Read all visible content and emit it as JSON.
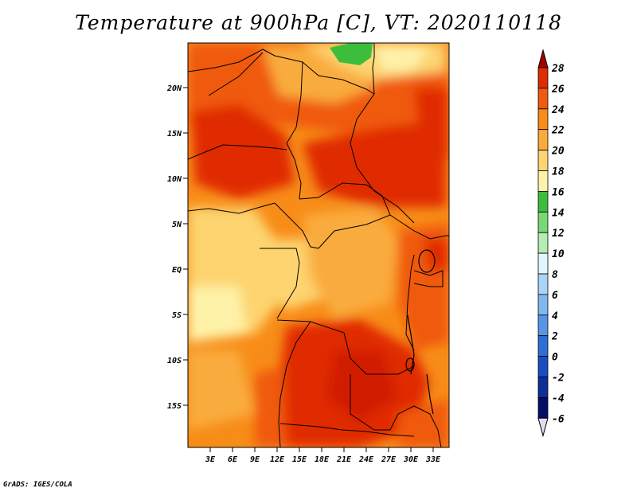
{
  "title": "Temperature at 900hPa [C], VT: 2020110118",
  "credit": "GrADS: IGES/COLA",
  "map": {
    "lat_labels": [
      "20N",
      "15N",
      "10N",
      "5N",
      "EQ",
      "5S",
      "10S",
      "15S"
    ],
    "lon_labels": [
      "3E",
      "6E",
      "9E",
      "12E",
      "15E",
      "18E",
      "21E",
      "24E",
      "27E",
      "30E",
      "33E"
    ]
  },
  "colorbar": {
    "labels": [
      "28",
      "26",
      "24",
      "22",
      "20",
      "18",
      "16",
      "14",
      "12",
      "10",
      "8",
      "6",
      "4",
      "2",
      "0",
      "-2",
      "-4",
      "-6"
    ],
    "colors": [
      "#a50000",
      "#e02a00",
      "#f05a10",
      "#f88c18",
      "#f9ac3c",
      "#fdd470",
      "#fef2a8",
      "#3cbe3c",
      "#78d878",
      "#b4ecb4",
      "#e2f6ff",
      "#a9d5f6",
      "#82b8f0",
      "#5596e6",
      "#2e6fd6",
      "#1a4ec0",
      "#0c2f98",
      "#050d66",
      "#e4dcf4"
    ]
  }
}
